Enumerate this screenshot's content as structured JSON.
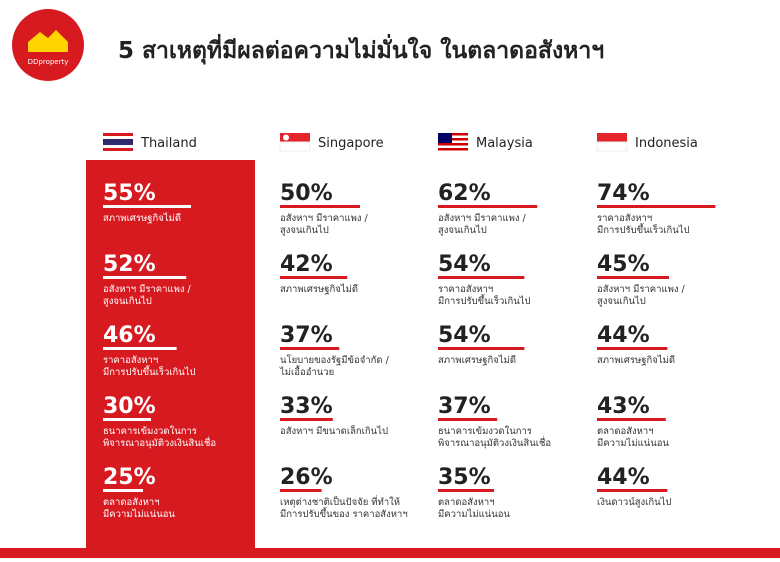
{
  "logo": "DDproperty",
  "title": "5 สาเหตุที่มีผลต่อความไม่มั่นใจ ในตลาดอสังหาฯ",
  "countries": [
    {
      "name": "Thailand",
      "items": [
        {
          "value": 55,
          "value_label": "55%",
          "label_lines": [
            "สภาพเศรษฐกิจไม่ดี"
          ]
        },
        {
          "value": 52,
          "value_label": "52%",
          "label_lines": [
            "อสังหาฯ มีราคาแพง /",
            "สูงจนเกินไป"
          ]
        },
        {
          "value": 46,
          "value_label": "46%",
          "label_lines": [
            "ราคาอสังหาฯ",
            "มีการปรับขึ้นเร็วเกินไป"
          ]
        },
        {
          "value": 30,
          "value_label": "30%",
          "label_lines": [
            "ธนาคารเข้มงวดในการ",
            "พิจารณาอนุมัติวงเงินสินเชื่อ"
          ]
        },
        {
          "value": 25,
          "value_label": "25%",
          "label_lines": [
            "ตลาดอสังหาฯ",
            "มีความไม่แน่นอน"
          ]
        }
      ]
    },
    {
      "name": "Singapore",
      "items": [
        {
          "value": 50,
          "value_label": "50%",
          "label_lines": [
            "อสังหาฯ มีราคาแพง /",
            "สูงจนเกินไป"
          ]
        },
        {
          "value": 42,
          "value_label": "42%",
          "label_lines": [
            "สภาพเศรษฐกิจไม่ดี"
          ]
        },
        {
          "value": 37,
          "value_label": "37%",
          "label_lines": [
            "นโยบายของรัฐมีข้อจำกัด /",
            "ไม่เอื้ออำนวย"
          ]
        },
        {
          "value": 33,
          "value_label": "33%",
          "label_lines": [
            "อสังหาฯ มีขนาดเล็กเกินไป"
          ]
        },
        {
          "value": 26,
          "value_label": "26%",
          "label_lines": [
            "เหตุต่างชาติเป็นปัจจัย ที่ทำให้",
            "มีการปรับขึ้นของ ราคาอสังหาฯ"
          ]
        }
      ]
    },
    {
      "name": "Malaysia",
      "items": [
        {
          "value": 62,
          "value_label": "62%",
          "label_lines": [
            "อสังหาฯ มีราคาแพง /",
            "สูงจนเกินไป"
          ]
        },
        {
          "value": 54,
          "value_label": "54%",
          "label_lines": [
            "ราคาอสังหาฯ",
            "มีการปรับขึ้นเร็วเกินไป"
          ]
        },
        {
          "value": 54,
          "value_label": "54%",
          "label_lines": [
            "สภาพเศรษฐกิจไม่ดี"
          ]
        },
        {
          "value": 37,
          "value_label": "37%",
          "label_lines": [
            "ธนาคารเข้มงวดในการ",
            "พิจารณาอนุมัติวงเงินสินเชื่อ"
          ]
        },
        {
          "value": 35,
          "value_label": "35%",
          "label_lines": [
            "ตลาดอสังหาฯ",
            "มีความไม่แน่นอน"
          ]
        }
      ]
    },
    {
      "name": "Indonesia",
      "items": [
        {
          "value": 74,
          "value_label": "74%",
          "label_lines": [
            "ราคาอสังหาฯ",
            "มีการปรับขึ้นเร็วเกินไป"
          ]
        },
        {
          "value": 45,
          "value_label": "45%",
          "label_lines": [
            "อสังหาฯ มีราคาแพง /",
            "สูงจนเกินไป"
          ]
        },
        {
          "value": 44,
          "value_label": "44%",
          "label_lines": [
            "สภาพเศรษฐกิจไม่ดี"
          ]
        },
        {
          "value": 43,
          "value_label": "43%",
          "label_lines": [
            "ตลาดอสังหาฯ",
            "มีความไม่แน่นอน"
          ]
        },
        {
          "value": 44,
          "value_label": "44%",
          "label_lines": [
            "เงินดาวน์สูงเกินไป"
          ]
        }
      ]
    }
  ]
}
